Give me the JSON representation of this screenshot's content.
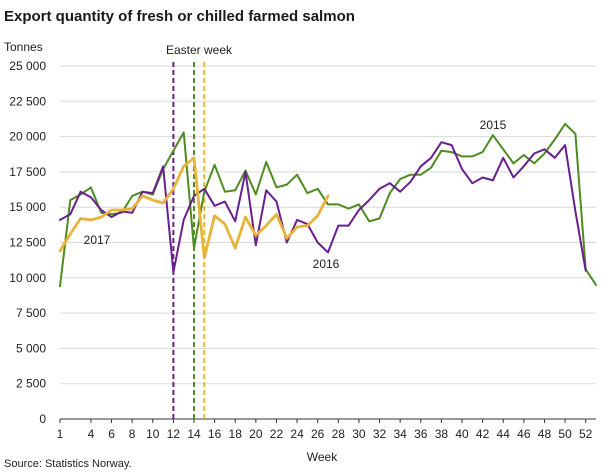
{
  "chart_data": {
    "type": "line",
    "title": "Export quantity of fresh or chilled farmed salmon",
    "ylabel": "Tonnes",
    "xlabel": "Week",
    "source": "Source: Statistics Norway.",
    "ylim": [
      0,
      25000
    ],
    "xlim": [
      1,
      53
    ],
    "yticks": [
      0,
      2500,
      5000,
      7500,
      10000,
      12500,
      15000,
      17500,
      20000,
      22500,
      25000
    ],
    "ytick_labels": [
      "0",
      "2 500",
      "5 000",
      "7 500",
      "10 000",
      "12 500",
      "15 000",
      "17 500",
      "20 000",
      "22 500",
      "25 000"
    ],
    "xticks": [
      1,
      4,
      6,
      8,
      10,
      12,
      14,
      16,
      18,
      20,
      22,
      24,
      26,
      28,
      30,
      32,
      34,
      36,
      38,
      40,
      42,
      44,
      46,
      48,
      50,
      52
    ],
    "xtick_labels": [
      "1",
      "4",
      "6",
      "8",
      "10",
      "12",
      "14",
      "16",
      "18",
      "20",
      "22",
      "24",
      "26",
      "28",
      "30",
      "32",
      "34",
      "36",
      "38",
      "40",
      "42",
      "44",
      "46",
      "48",
      "50",
      "52"
    ],
    "grid": "horizontal",
    "series": [
      {
        "name": "2015",
        "color": "#4e8c1f",
        "x": [
          1,
          2,
          3,
          4,
          5,
          6,
          7,
          8,
          9,
          10,
          11,
          12,
          13,
          14,
          15,
          16,
          17,
          18,
          19,
          20,
          21,
          22,
          23,
          24,
          25,
          26,
          27,
          28,
          29,
          30,
          31,
          32,
          33,
          34,
          35,
          36,
          37,
          38,
          39,
          40,
          41,
          42,
          43,
          44,
          45,
          46,
          47,
          48,
          49,
          50,
          51,
          52,
          53
        ],
        "values": [
          9400,
          15500,
          15900,
          16400,
          14600,
          14500,
          14600,
          15800,
          16100,
          15900,
          17700,
          19000,
          20300,
          12100,
          16100,
          18000,
          16100,
          16200,
          17600,
          15900,
          18200,
          16400,
          16600,
          17300,
          16000,
          16300,
          15200,
          15200,
          14900,
          15200,
          14000,
          14200,
          16000,
          17000,
          17300,
          17300,
          17800,
          19000,
          18900,
          18600,
          18600,
          18900,
          20100,
          19100,
          18100,
          18700,
          18100,
          18800,
          19800,
          20900,
          20200,
          10600,
          9500
        ]
      },
      {
        "name": "2016",
        "color": "#6a1f8f",
        "x": [
          1,
          2,
          3,
          4,
          5,
          6,
          7,
          8,
          9,
          10,
          11,
          12,
          13,
          14,
          15,
          16,
          17,
          18,
          19,
          20,
          21,
          22,
          23,
          24,
          25,
          26,
          27,
          28,
          29,
          30,
          31,
          32,
          33,
          34,
          35,
          36,
          37,
          38,
          39,
          40,
          41,
          42,
          43,
          44,
          45,
          46,
          47,
          48,
          49,
          50,
          51,
          52,
          53
        ],
        "values": [
          14100,
          14500,
          16100,
          15700,
          14800,
          14300,
          14700,
          14600,
          16100,
          16000,
          17900,
          10400,
          14100,
          15800,
          16300,
          15100,
          15400,
          14000,
          17500,
          12300,
          16200,
          15400,
          12500,
          14100,
          13800,
          12500,
          11800,
          13700,
          13700,
          14800,
          15500,
          16300,
          16700,
          16100,
          16800,
          17900,
          18500,
          19600,
          19400,
          17700,
          16700,
          17100,
          16900,
          18500,
          17100,
          17900,
          18800,
          19100,
          18500,
          19400,
          14700,
          10500,
          null
        ]
      },
      {
        "name": "2017",
        "color": "#e8b33a",
        "x": [
          1,
          2,
          3,
          4,
          5,
          6,
          7,
          8,
          9,
          10,
          11,
          12,
          13,
          14,
          15,
          16,
          17,
          18,
          19,
          20,
          21,
          22,
          23,
          24,
          25,
          26,
          27
        ],
        "values": [
          11900,
          13100,
          14200,
          14100,
          14300,
          14800,
          14800,
          14900,
          15800,
          15500,
          15300,
          16300,
          17900,
          18500,
          11400,
          14400,
          13800,
          12100,
          14300,
          13000,
          13700,
          14500,
          12800,
          13600,
          13700,
          14400,
          15800
        ]
      }
    ],
    "vlines": [
      {
        "x": 12,
        "color": "#6a1f8f"
      },
      {
        "x": 14,
        "color": "#4e8c1f"
      },
      {
        "x": 15,
        "color": "#e8b33a"
      }
    ],
    "annotations": [
      {
        "text": "Easter week"
      },
      {
        "text": "2015"
      },
      {
        "text": "2016"
      },
      {
        "text": "2017"
      }
    ]
  }
}
